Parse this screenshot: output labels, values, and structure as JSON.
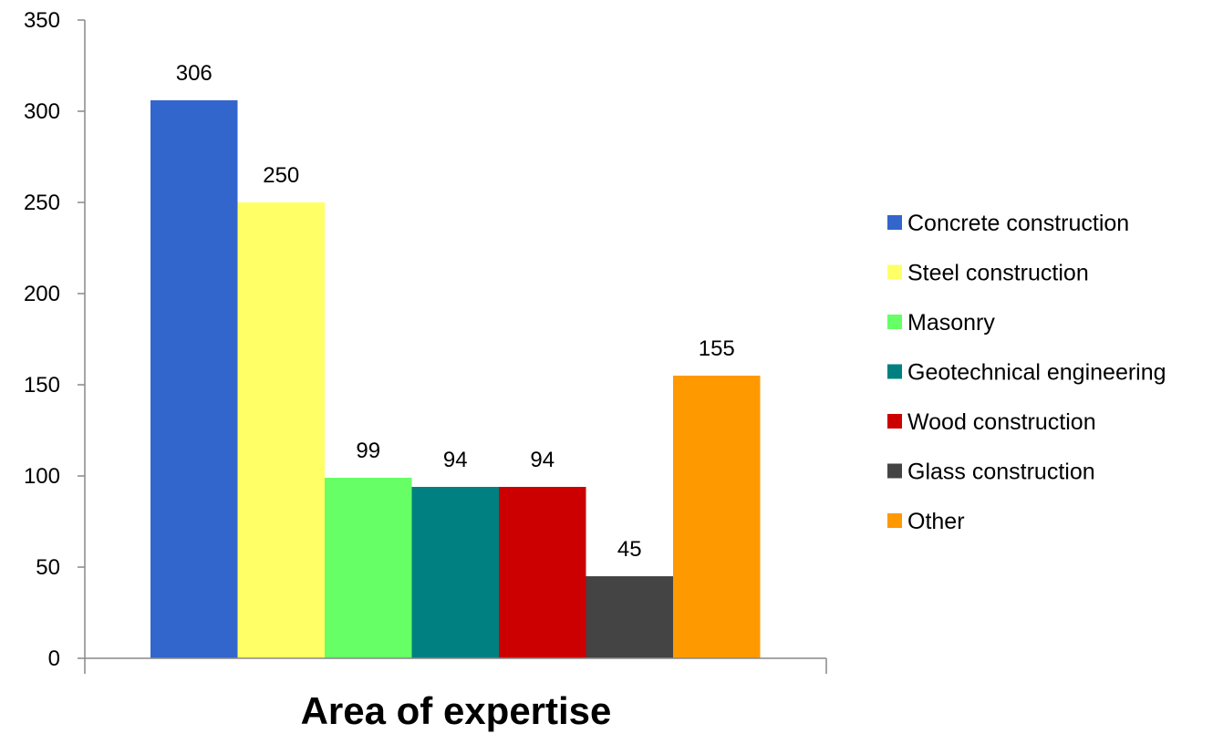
{
  "chart_data": {
    "type": "bar",
    "title": "",
    "xlabel": "Area of expertise",
    "ylabel": "",
    "ylim": [
      0,
      350
    ],
    "yticks": [
      0,
      50,
      100,
      150,
      200,
      250,
      300,
      350
    ],
    "grid": false,
    "legend_position": "right",
    "series": [
      {
        "name": "Concrete construction",
        "value": 306,
        "color": "#3366CC"
      },
      {
        "name": "Steel construction",
        "value": 250,
        "color": "#FFFF66"
      },
      {
        "name": "Masonry",
        "value": 99,
        "color": "#66FF66"
      },
      {
        "name": "Geotechnical engineering",
        "value": 94,
        "color": "#008080"
      },
      {
        "name": "Wood construction",
        "value": 94,
        "color": "#CC0000"
      },
      {
        "name": "Glass construction",
        "value": 45,
        "color": "#444444"
      },
      {
        "name": "Other",
        "value": 155,
        "color": "#FF9900"
      }
    ]
  }
}
